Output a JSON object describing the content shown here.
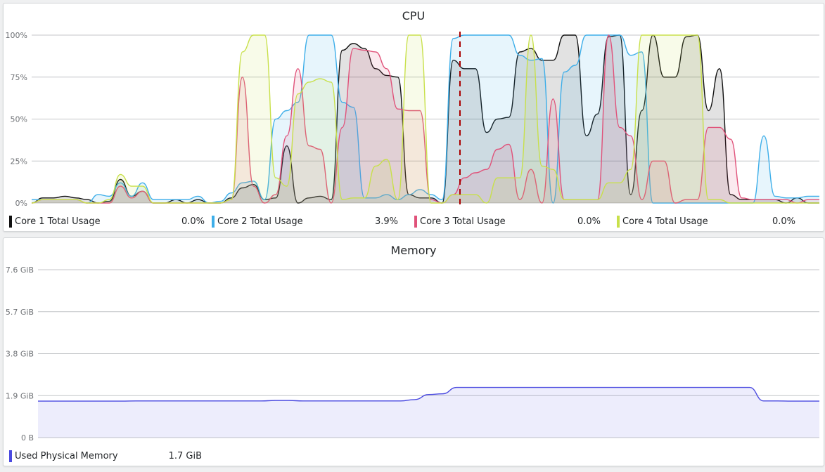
{
  "cpu": {
    "title": "CPU",
    "y_ticks": [
      "100%",
      "75%",
      "50%",
      "25%",
      "0%"
    ],
    "legend": [
      {
        "label": "Core 1 Total Usage",
        "value": "0.0%",
        "color": "#111111"
      },
      {
        "label": "Core 2 Total Usage",
        "value": "3.9%",
        "color": "#3daee9"
      },
      {
        "label": "Core 3 Total Usage",
        "value": "0.0%",
        "color": "#e0527a"
      },
      {
        "label": "Core 4 Total Usage",
        "value": "0.0%",
        "color": "#c8e04a"
      }
    ]
  },
  "memory": {
    "title": "Memory",
    "y_ticks": [
      "7.6 GiB",
      "5.7 GiB",
      "3.8 GiB",
      "1.9 GiB",
      "0 B"
    ],
    "legend": [
      {
        "label": "Used Physical Memory",
        "value": "1.7 GiB",
        "color": "#4a4ae0"
      }
    ]
  },
  "chart_data": [
    {
      "type": "area",
      "title": "CPU",
      "ylim": [
        0,
        100
      ],
      "grid": true,
      "legend_placement": "bottom",
      "series": [
        {
          "name": "Core 1 Total Usage",
          "color": "#111111",
          "values": [
            0,
            3,
            3,
            4,
            3,
            2,
            0,
            1,
            14,
            4,
            7,
            0,
            0,
            2,
            0,
            2,
            0,
            0,
            3,
            9,
            11,
            2,
            3,
            34,
            0,
            3,
            4,
            2,
            91,
            95,
            92,
            80,
            76,
            75,
            5,
            3,
            3,
            0,
            85,
            80,
            80,
            42,
            50,
            51,
            90,
            92,
            85,
            85,
            100,
            100,
            40,
            53,
            99,
            100,
            5,
            55,
            100,
            75,
            75,
            99,
            100,
            55,
            80,
            5,
            2,
            2,
            2,
            2,
            0,
            3,
            0,
            0
          ]
        },
        {
          "name": "Core 2 Total Usage",
          "color": "#3daee9",
          "values": [
            2,
            2,
            2,
            2,
            2,
            0,
            5,
            4,
            12,
            4,
            12,
            2,
            2,
            2,
            2,
            4,
            0,
            1,
            6,
            12,
            13,
            2,
            50,
            55,
            60,
            100,
            100,
            100,
            60,
            57,
            3,
            3,
            5,
            2,
            5,
            8,
            5,
            2,
            98,
            100,
            100,
            100,
            100,
            100,
            88,
            85,
            86,
            0,
            78,
            82,
            100,
            100,
            100,
            100,
            88,
            90,
            0,
            0,
            0,
            0,
            0,
            0,
            0,
            0,
            0,
            0,
            40,
            4,
            3,
            3,
            4,
            4
          ]
        },
        {
          "name": "Core 3 Total Usage",
          "color": "#e0527a",
          "values": [
            0,
            2,
            2,
            2,
            2,
            0,
            0,
            0,
            10,
            3,
            7,
            0,
            0,
            0,
            0,
            0,
            0,
            0,
            2,
            75,
            10,
            0,
            5,
            40,
            80,
            34,
            32,
            0,
            45,
            92,
            91,
            90,
            80,
            56,
            55,
            55,
            2,
            0,
            5,
            15,
            18,
            20,
            32,
            35,
            2,
            20,
            0,
            62,
            2,
            2,
            2,
            2,
            100,
            45,
            40,
            2,
            25,
            25,
            0,
            2,
            2,
            45,
            45,
            38,
            3,
            2,
            2,
            2,
            2,
            0,
            2,
            2
          ]
        },
        {
          "name": "Core 4 Total Usage",
          "color": "#c8e04a",
          "values": [
            0,
            2,
            2,
            2,
            2,
            0,
            0,
            2,
            17,
            10,
            10,
            0,
            0,
            0,
            0,
            0,
            0,
            0,
            2,
            90,
            100,
            100,
            15,
            10,
            65,
            72,
            74,
            72,
            2,
            3,
            3,
            22,
            26,
            2,
            100,
            100,
            0,
            0,
            5,
            5,
            5,
            0,
            15,
            15,
            15,
            100,
            22,
            20,
            2,
            2,
            2,
            2,
            12,
            12,
            20,
            100,
            100,
            100,
            100,
            100,
            100,
            2,
            2,
            0,
            0,
            0,
            0,
            0,
            0,
            0,
            0,
            0
          ]
        }
      ]
    },
    {
      "type": "area",
      "title": "Memory",
      "ylim": [
        0,
        7.6
      ],
      "grid": true,
      "legend_placement": "bottom",
      "series": [
        {
          "name": "Used Physical Memory",
          "color": "#4a4ae0",
          "values": [
            1.65,
            1.65,
            1.65,
            1.65,
            1.65,
            1.65,
            1.65,
            1.66,
            1.66,
            1.66,
            1.66,
            1.66,
            1.66,
            1.66,
            1.66,
            1.66,
            1.66,
            1.68,
            1.68,
            1.66,
            1.66,
            1.66,
            1.66,
            1.66,
            1.66,
            1.66,
            1.66,
            1.72,
            1.95,
            1.98,
            2.27,
            2.27,
            2.27,
            2.27,
            2.27,
            2.27,
            2.27,
            2.27,
            2.27,
            2.27,
            2.27,
            2.27,
            2.27,
            2.27,
            2.27,
            2.27,
            2.27,
            2.27,
            2.27,
            2.27,
            2.27,
            2.27,
            1.66,
            1.66,
            1.65,
            1.65,
            1.65
          ]
        }
      ]
    }
  ]
}
